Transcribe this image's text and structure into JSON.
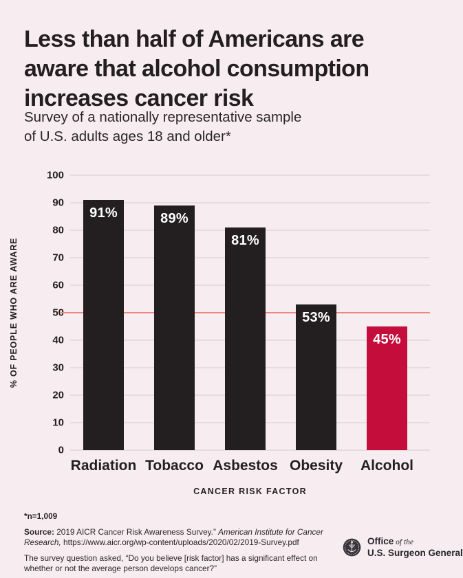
{
  "colors": {
    "background": "#f7edf0",
    "ink": "#231f20",
    "bar": "#231f20",
    "highlight_bar": "#c40d3a",
    "reference_line": "#f0867c",
    "gridline": "#e6dbdf",
    "bar_value_label": "#ffffff"
  },
  "header": {
    "title_lines": [
      "Less than half of Americans are",
      "aware that alcohol consumption",
      "increases cancer risk"
    ],
    "subtitle_lines": [
      "Survey of a nationally representative sample",
      "of U.S. adults ages 18 and older*"
    ]
  },
  "chart_data": {
    "type": "bar",
    "title": "Less than half of Americans are aware that alcohol consumption increases cancer risk",
    "categories": [
      "Radiation",
      "Tobacco",
      "Asbestos",
      "Obesity",
      "Alcohol"
    ],
    "values": [
      91,
      89,
      81,
      53,
      45
    ],
    "value_labels": [
      "91%",
      "89%",
      "81%",
      "53%",
      "45%"
    ],
    "xlabel": "CANCER RISK FACTOR",
    "ylabel": "% OF PEOPLE WHO ARE AWARE",
    "ylim": [
      0,
      100
    ],
    "yticks": [
      0,
      10,
      20,
      30,
      40,
      50,
      60,
      70,
      80,
      90,
      100
    ],
    "grid": true,
    "legend": false,
    "reference_line_y": 50,
    "highlight_index": 4
  },
  "footnotes": {
    "sample_note": "*n=1,009",
    "source_label": "Source:",
    "source_text": " 2019 AICR Cancer Risk Awareness Survey.” ",
    "source_publisher": "American Institute for Cancer Research,",
    "source_url": " https://www.aicr.org/wp-content/uploads/2020/02/2019-Survey.pdf",
    "question_note": "The survey question asked, “Do you believe [risk factor] has a significant effect on whether or not the average person develops cancer?”"
  },
  "logo": {
    "office_bold": "Office",
    "office_italic": " of the",
    "agency": "U.S. Surgeon General"
  }
}
